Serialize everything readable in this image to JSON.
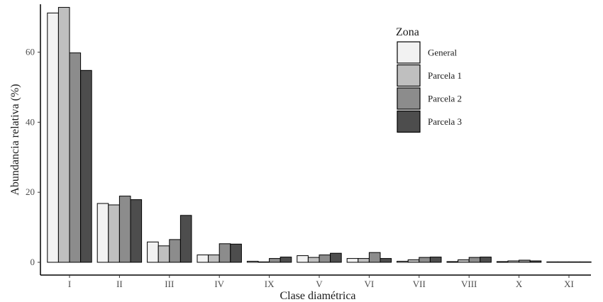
{
  "chart_data": {
    "type": "bar",
    "title": "",
    "xlabel": "Clase diamétrica",
    "ylabel": "Abundancia relativa (%)",
    "ylim": [
      0,
      73
    ],
    "yticks": [
      0,
      20,
      40,
      60
    ],
    "grid": false,
    "legend_position": "top-right",
    "legend_title": "Zona",
    "categories": [
      "I",
      "II",
      "III",
      "IV",
      "IX",
      "V",
      "VI",
      "VII",
      "VIII",
      "X",
      "XI"
    ],
    "series": [
      {
        "name": "General",
        "color": "#f2f2f2",
        "values": [
          71.2,
          16.8,
          5.8,
          2.1,
          0.3,
          1.9,
          1.1,
          0.3,
          0.2,
          0.2,
          0.1
        ]
      },
      {
        "name": "Parcela 1",
        "color": "#bfbfbf",
        "values": [
          72.8,
          16.4,
          4.7,
          2.1,
          0.0,
          1.4,
          1.1,
          0.7,
          0.7,
          0.4,
          0.0
        ]
      },
      {
        "name": "Parcela 2",
        "color": "#8c8c8c",
        "values": [
          59.8,
          18.9,
          6.5,
          5.3,
          1.1,
          2.1,
          2.8,
          1.4,
          1.4,
          0.6,
          0.0
        ]
      },
      {
        "name": "Parcela 3",
        "color": "#4d4d4d",
        "values": [
          54.8,
          17.9,
          13.4,
          5.2,
          1.5,
          2.6,
          1.1,
          1.5,
          1.5,
          0.4,
          0.0
        ]
      }
    ]
  }
}
